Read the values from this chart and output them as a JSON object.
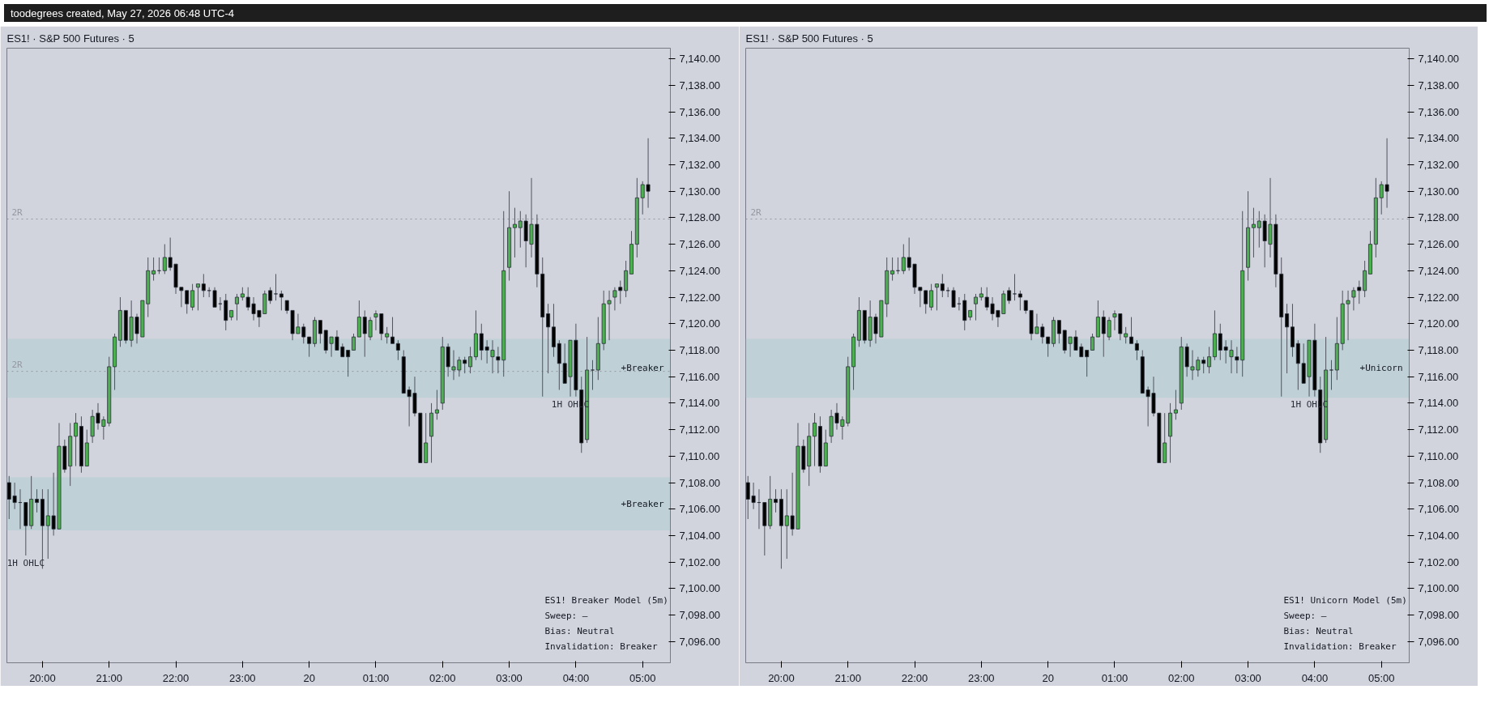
{
  "chart_data": [
    {
      "type": "candlestick",
      "title": "ES1! · S&P 500 Futures · 5",
      "x": [
        "2026-05-19T19:30",
        "2026-05-19T19:35",
        "2026-05-19T19:40",
        "2026-05-19T19:45",
        "2026-05-19T19:50",
        "2026-05-19T19:55",
        "2026-05-19T20:00",
        "2026-05-19T20:05",
        "2026-05-19T20:10",
        "2026-05-19T20:15",
        "2026-05-19T20:20",
        "2026-05-19T20:25",
        "2026-05-19T20:30",
        "2026-05-19T20:35",
        "2026-05-19T20:40",
        "2026-05-19T20:45",
        "2026-05-19T20:50",
        "2026-05-19T20:55",
        "2026-05-19T21:00",
        "2026-05-19T21:05",
        "2026-05-19T21:10",
        "2026-05-19T21:15",
        "2026-05-19T21:20",
        "2026-05-19T21:25",
        "2026-05-19T21:30",
        "2026-05-19T21:35",
        "2026-05-19T21:40",
        "2026-05-19T21:45",
        "2026-05-19T21:50",
        "2026-05-19T21:55",
        "2026-05-19T22:00",
        "2026-05-19T22:05",
        "2026-05-19T22:10",
        "2026-05-19T22:15",
        "2026-05-19T22:20",
        "2026-05-19T22:25",
        "2026-05-19T22:30",
        "2026-05-19T22:35",
        "2026-05-19T22:40",
        "2026-05-19T22:45",
        "2026-05-19T22:50",
        "2026-05-19T22:55",
        "2026-05-19T23:00",
        "2026-05-19T23:05",
        "2026-05-19T23:10",
        "2026-05-19T23:15",
        "2026-05-19T23:20",
        "2026-05-19T23:25",
        "2026-05-19T23:30",
        "2026-05-19T23:35",
        "2026-05-19T23:40",
        "2026-05-19T23:45",
        "2026-05-19T23:50",
        "2026-05-19T23:55",
        "2026-05-20T00:00",
        "2026-05-20T00:05",
        "2026-05-20T00:10",
        "2026-05-20T00:15",
        "2026-05-20T00:20",
        "2026-05-20T00:25",
        "2026-05-20T00:30",
        "2026-05-20T00:35",
        "2026-05-20T00:40",
        "2026-05-20T00:45",
        "2026-05-20T00:50",
        "2026-05-20T00:55",
        "2026-05-20T01:00",
        "2026-05-20T01:05",
        "2026-05-20T01:10",
        "2026-05-20T01:15",
        "2026-05-20T01:20",
        "2026-05-20T01:25",
        "2026-05-20T01:30",
        "2026-05-20T01:35",
        "2026-05-20T01:40",
        "2026-05-20T01:45",
        "2026-05-20T01:50",
        "2026-05-20T01:55",
        "2026-05-20T02:00",
        "2026-05-20T02:05",
        "2026-05-20T02:10",
        "2026-05-20T02:15",
        "2026-05-20T02:20",
        "2026-05-20T02:25",
        "2026-05-20T02:30",
        "2026-05-20T02:35",
        "2026-05-20T02:40",
        "2026-05-20T02:45",
        "2026-05-20T02:50",
        "2026-05-20T02:55",
        "2026-05-20T03:00",
        "2026-05-20T03:05",
        "2026-05-20T03:10",
        "2026-05-20T03:15",
        "2026-05-20T03:20",
        "2026-05-20T03:25",
        "2026-05-20T03:30",
        "2026-05-20T03:35",
        "2026-05-20T03:40",
        "2026-05-20T03:45",
        "2026-05-20T03:50",
        "2026-05-20T03:55",
        "2026-05-20T04:00",
        "2026-05-20T04:05",
        "2026-05-20T04:10",
        "2026-05-20T04:15",
        "2026-05-20T04:20",
        "2026-05-20T04:25",
        "2026-05-20T04:30",
        "2026-05-20T04:35",
        "2026-05-20T04:40",
        "2026-05-20T04:45",
        "2026-05-20T04:50",
        "2026-05-20T04:55",
        "2026-05-20T05:00",
        "2026-05-20T05:05"
      ],
      "ohlc": [
        [
          7108,
          7108.5,
          7105.25,
          7106.75
        ],
        [
          7107,
          7108,
          7106,
          7106.5
        ],
        [
          7106.5,
          7107.5,
          7104.5,
          7106.5
        ],
        [
          7106.5,
          7106.5,
          7102.5,
          7104.75
        ],
        [
          7104.75,
          7108.5,
          7104.5,
          7106.75
        ],
        [
          7106.75,
          7107.5,
          7105.75,
          7106.5
        ],
        [
          7106.75,
          7107.5,
          7101.5,
          7104.75
        ],
        [
          7104.75,
          7107.5,
          7102.25,
          7105.5
        ],
        [
          7105.5,
          7108.75,
          7104,
          7104.5
        ],
        [
          7104.5,
          7112.5,
          7104.5,
          7110.75
        ],
        [
          7110.75,
          7111.25,
          7108.75,
          7109
        ],
        [
          7109.25,
          7112.5,
          7107.75,
          7111.5
        ],
        [
          7111.5,
          7113.25,
          7109.25,
          7112.5
        ],
        [
          7112.25,
          7113,
          7108.75,
          7109.25
        ],
        [
          7109.25,
          7112,
          7109.25,
          7111
        ],
        [
          7111.5,
          7113.5,
          7111,
          7113
        ],
        [
          7113.25,
          7114,
          7112,
          7112.5
        ],
        [
          7112.25,
          7113,
          7111.25,
          7112.75
        ],
        [
          7112.5,
          7117.5,
          7112.25,
          7116.75
        ],
        [
          7116.75,
          7119.25,
          7115,
          7119
        ],
        [
          7118.75,
          7122,
          7118.25,
          7121
        ],
        [
          7121,
          7121,
          7118.5,
          7118.75
        ],
        [
          7118.75,
          7121.75,
          7118.25,
          7120.5
        ],
        [
          7120.5,
          7120.75,
          7118.5,
          7119.25
        ],
        [
          7119,
          7121.75,
          7119,
          7121.75
        ],
        [
          7121.5,
          7125,
          7120.5,
          7124
        ],
        [
          7123.75,
          7125,
          7123.25,
          7124
        ],
        [
          7124,
          7125,
          7123.75,
          7124
        ],
        [
          7124,
          7126,
          7123.75,
          7125
        ],
        [
          7125,
          7126.5,
          7124,
          7124.25
        ],
        [
          7124.5,
          7124.5,
          7122.25,
          7122.75
        ],
        [
          7122.75,
          7122.75,
          7121.25,
          7122.5
        ],
        [
          7122.5,
          7122.5,
          7120.75,
          7121.5
        ],
        [
          7121.25,
          7123,
          7121,
          7122.5
        ],
        [
          7122.75,
          7123,
          7121,
          7123
        ],
        [
          7123,
          7123.75,
          7122,
          7122.5
        ],
        [
          7122.5,
          7122.75,
          7122,
          7122.5
        ],
        [
          7122.5,
          7122.75,
          7121.25,
          7121.25
        ],
        [
          7121.5,
          7122,
          7121,
          7121.5
        ],
        [
          7121.75,
          7122.25,
          7119.5,
          7120.25
        ],
        [
          7120.5,
          7121,
          7120.25,
          7121
        ],
        [
          7121.5,
          7122.25,
          7120.25,
          7122
        ],
        [
          7122,
          7122.75,
          7121.75,
          7122.25
        ],
        [
          7122,
          7122.75,
          7121,
          7121.25
        ],
        [
          7121.5,
          7122,
          7120.25,
          7120.75
        ],
        [
          7121,
          7121,
          7119.75,
          7120.5
        ],
        [
          7120.75,
          7122.5,
          7120.75,
          7122.25
        ],
        [
          7122.5,
          7122.75,
          7121.5,
          7121.75
        ],
        [
          7122.25,
          7123.75,
          7121.75,
          7122.25
        ],
        [
          7122.25,
          7122.5,
          7121,
          7122
        ],
        [
          7121.75,
          7121.75,
          7120.75,
          7121
        ],
        [
          7121,
          7121,
          7118.75,
          7119.25
        ],
        [
          7119.25,
          7120.75,
          7119.25,
          7119.75
        ],
        [
          7119.75,
          7120,
          7118.5,
          7119
        ],
        [
          7119,
          7119,
          7117.5,
          7118.5
        ],
        [
          7118.5,
          7120.5,
          7118.25,
          7120.25
        ],
        [
          7120.25,
          7120.25,
          7118.5,
          7119.25
        ],
        [
          7119.5,
          7119.5,
          7117.75,
          7118
        ],
        [
          7118.5,
          7119,
          7117.5,
          7119
        ],
        [
          7119,
          7119.5,
          7118,
          7118
        ],
        [
          7118.25,
          7118.5,
          7117.5,
          7117.5
        ],
        [
          7118,
          7118,
          7116,
          7117.5
        ],
        [
          7118,
          7119.25,
          7118,
          7119
        ],
        [
          7119,
          7121.75,
          7119,
          7120.5
        ],
        [
          7120.5,
          7121,
          7117.5,
          7119.25
        ],
        [
          7119,
          7120.5,
          7118.75,
          7120.25
        ],
        [
          7120.5,
          7121,
          7119.5,
          7120.75
        ],
        [
          7120.75,
          7120.75,
          7118.75,
          7119.25
        ],
        [
          7119,
          7119.75,
          7118.5,
          7119.25
        ],
        [
          7119,
          7120.5,
          7118.5,
          7118.5
        ],
        [
          7118.5,
          7118.75,
          7117.25,
          7118
        ],
        [
          7117.5,
          7118,
          7114.75,
          7114.75
        ],
        [
          7115,
          7115.25,
          7112.25,
          7114.5
        ],
        [
          7114.75,
          7116,
          7113,
          7113.25
        ],
        [
          7113.25,
          7113.25,
          7109.5,
          7109.5
        ],
        [
          7109.5,
          7113.25,
          7109.5,
          7111
        ],
        [
          7111.5,
          7114,
          7109.5,
          7113.25
        ],
        [
          7113.25,
          7115,
          7112.75,
          7113.5
        ],
        [
          7114,
          7119,
          7113.5,
          7118.25
        ],
        [
          7118.25,
          7118.5,
          7116,
          7116.75
        ],
        [
          7116.5,
          7118,
          7115.75,
          7116.75
        ],
        [
          7116.5,
          7117.5,
          7116,
          7117.25
        ],
        [
          7117.25,
          7117.5,
          7116.25,
          7117
        ],
        [
          7116.75,
          7118.25,
          7116.25,
          7117.5
        ],
        [
          7117.5,
          7121,
          7117.25,
          7119.25
        ],
        [
          7119.25,
          7120,
          7117.25,
          7118
        ],
        [
          7118.25,
          7118.75,
          7117,
          7118
        ],
        [
          7117.5,
          7118.75,
          7116.25,
          7118
        ],
        [
          7117.5,
          7118.25,
          7116.25,
          7117.25
        ],
        [
          7117.25,
          7128.5,
          7116,
          7124
        ],
        [
          7124.25,
          7130,
          7123.25,
          7127.25
        ],
        [
          7127.25,
          7128.75,
          7125,
          7127.5
        ],
        [
          7127.25,
          7128.5,
          7125.75,
          7127.75
        ],
        [
          7127.75,
          7128.25,
          7124.25,
          7126.25
        ],
        [
          7126,
          7131,
          7125,
          7127.5
        ],
        [
          7127.5,
          7128.25,
          7122.75,
          7123.75
        ],
        [
          7123.75,
          7125,
          7114.5,
          7120.5
        ],
        [
          7120.75,
          7121.5,
          7116.25,
          7119.75
        ],
        [
          7119.75,
          7121.5,
          7117.5,
          7118.25
        ],
        [
          7118.5,
          7118.75,
          7115,
          7117
        ],
        [
          7117,
          7118.5,
          7115.5,
          7115.5
        ],
        [
          7116,
          7118.75,
          7114.5,
          7118.75
        ],
        [
          7118.75,
          7120,
          7114.5,
          7115
        ],
        [
          7115,
          7116,
          7110.25,
          7111
        ],
        [
          7111.25,
          7119,
          7111,
          7116.5
        ],
        [
          7116.5,
          7117.25,
          7115,
          7116.5
        ],
        [
          7116.5,
          7120.5,
          7115.75,
          7118.5
        ],
        [
          7118.5,
          7122.5,
          7118,
          7121.5
        ],
        [
          7121.5,
          7122.5,
          7118.75,
          7121.75
        ],
        [
          7122,
          7122.75,
          7121,
          7122.5
        ],
        [
          7122.75,
          7123.25,
          7121.5,
          7122.5
        ],
        [
          7122.5,
          7124.75,
          7122,
          7124
        ],
        [
          7123.75,
          7127,
          7123.75,
          7126
        ],
        [
          7126,
          7131,
          7125,
          7129.5
        ],
        [
          7129.5,
          7130.75,
          7128.25,
          7130.5
        ],
        [
          7130.5,
          7134,
          7128.75,
          7130
        ]
      ],
      "xlim": [
        "2026-05-19T19:28",
        "2026-05-20T05:25"
      ],
      "ylim": [
        7094.4,
        7140.8
      ],
      "xticks": [
        {
          "value": "2026-05-19T20:00",
          "label": "20:00"
        },
        {
          "value": "2026-05-19T21:00",
          "label": "21:00"
        },
        {
          "value": "2026-05-19T22:00",
          "label": "22:00"
        },
        {
          "value": "2026-05-19T23:00",
          "label": "23:00"
        },
        {
          "value": "2026-05-20T00:00",
          "label": "20"
        },
        {
          "value": "2026-05-20T01:00",
          "label": "01:00"
        },
        {
          "value": "2026-05-20T02:00",
          "label": "02:00"
        },
        {
          "value": "2026-05-20T03:00",
          "label": "03:00"
        },
        {
          "value": "2026-05-20T04:00",
          "label": "04:00"
        },
        {
          "value": "2026-05-20T05:00",
          "label": "05:00"
        }
      ],
      "yticks": [
        {
          "value": 7096,
          "label": "7,096.00"
        },
        {
          "value": 7098,
          "label": "7,098.00"
        },
        {
          "value": 7100,
          "label": "7,100.00"
        },
        {
          "value": 7102,
          "label": "7,102.00"
        },
        {
          "value": 7104,
          "label": "7,104.00"
        },
        {
          "value": 7106,
          "label": "7,106.00"
        },
        {
          "value": 7108,
          "label": "7,108.00"
        },
        {
          "value": 7110,
          "label": "7,110.00"
        },
        {
          "value": 7112,
          "label": "7,112.00"
        },
        {
          "value": 7114,
          "label": "7,114.00"
        },
        {
          "value": 7116,
          "label": "7,116.00"
        },
        {
          "value": 7118,
          "label": "7,118.00"
        },
        {
          "value": 7120,
          "label": "7,120.00"
        },
        {
          "value": 7122,
          "label": "7,122.00"
        },
        {
          "value": 7124,
          "label": "7,124.00"
        },
        {
          "value": 7126,
          "label": "7,126.00"
        },
        {
          "value": 7128,
          "label": "7,128.00"
        },
        {
          "value": 7130,
          "label": "7,130.00"
        },
        {
          "value": 7132,
          "label": "7,132.00"
        },
        {
          "value": 7134,
          "label": "7,134.00"
        },
        {
          "value": 7136,
          "label": "7,136.00"
        },
        {
          "value": 7138,
          "label": "7,138.00"
        },
        {
          "value": 7140,
          "label": "7,140.00"
        }
      ],
      "annotations": [
        "toodegrees created, May 27, 2026 06:48 UTC-4",
        {
          "text": "1H OHLC",
          "x": "2026-05-19T19:45",
          "y": 7102.5
        },
        {
          "text": "1H OHLC",
          "x": "2026-05-20T03:55",
          "y": 7114.5
        },
        "ES1! Breaker Model (5m)",
        "Sweep: –",
        "Bias: Neutral",
        "Invalidation: Breaker"
      ],
      "ref_lines": [
        {
          "axis": "y",
          "value": 7116.4,
          "label": "2R",
          "line_style": "dotted",
          "color": "#9598a1"
        },
        {
          "axis": "y",
          "value": 7127.9,
          "label": "2R",
          "line_style": "dotted",
          "color": "#9598a1"
        }
      ],
      "bands": [
        {
          "axis": "y",
          "from": 7104.4,
          "to": 7108.4,
          "label": "+Breaker",
          "color": "#b2ced3"
        },
        {
          "axis": "y",
          "from": 7114.4,
          "to": 7118.85,
          "label": "+Breaker",
          "color": "#b2ced3"
        }
      ]
    },
    {
      "type": "candlestick",
      "title": "ES1! · S&P 500 Futures · 5",
      "x": [
        "2026-05-19T19:30",
        "2026-05-19T19:35",
        "2026-05-19T19:40",
        "2026-05-19T19:45",
        "2026-05-19T19:50",
        "2026-05-19T19:55",
        "2026-05-19T20:00",
        "2026-05-19T20:05",
        "2026-05-19T20:10",
        "2026-05-19T20:15",
        "2026-05-19T20:20",
        "2026-05-19T20:25",
        "2026-05-19T20:30",
        "2026-05-19T20:35",
        "2026-05-19T20:40",
        "2026-05-19T20:45",
        "2026-05-19T20:50",
        "2026-05-19T20:55",
        "2026-05-19T21:00",
        "2026-05-19T21:05",
        "2026-05-19T21:10",
        "2026-05-19T21:15",
        "2026-05-19T21:20",
        "2026-05-19T21:25",
        "2026-05-19T21:30",
        "2026-05-19T21:35",
        "2026-05-19T21:40",
        "2026-05-19T21:45",
        "2026-05-19T21:50",
        "2026-05-19T21:55",
        "2026-05-19T22:00",
        "2026-05-19T22:05",
        "2026-05-19T22:10",
        "2026-05-19T22:15",
        "2026-05-19T22:20",
        "2026-05-19T22:25",
        "2026-05-19T22:30",
        "2026-05-19T22:35",
        "2026-05-19T22:40",
        "2026-05-19T22:45",
        "2026-05-19T22:50",
        "2026-05-19T22:55",
        "2026-05-19T23:00",
        "2026-05-19T23:05",
        "2026-05-19T23:10",
        "2026-05-19T23:15",
        "2026-05-19T23:20",
        "2026-05-19T23:25",
        "2026-05-19T23:30",
        "2026-05-19T23:35",
        "2026-05-19T23:40",
        "2026-05-19T23:45",
        "2026-05-19T23:50",
        "2026-05-19T23:55",
        "2026-05-20T00:00",
        "2026-05-20T00:05",
        "2026-05-20T00:10",
        "2026-05-20T00:15",
        "2026-05-20T00:20",
        "2026-05-20T00:25",
        "2026-05-20T00:30",
        "2026-05-20T00:35",
        "2026-05-20T00:40",
        "2026-05-20T00:45",
        "2026-05-20T00:50",
        "2026-05-20T00:55",
        "2026-05-20T01:00",
        "2026-05-20T01:05",
        "2026-05-20T01:10",
        "2026-05-20T01:15",
        "2026-05-20T01:20",
        "2026-05-20T01:25",
        "2026-05-20T01:30",
        "2026-05-20T01:35",
        "2026-05-20T01:40",
        "2026-05-20T01:45",
        "2026-05-20T01:50",
        "2026-05-20T01:55",
        "2026-05-20T02:00",
        "2026-05-20T02:05",
        "2026-05-20T02:10",
        "2026-05-20T02:15",
        "2026-05-20T02:20",
        "2026-05-20T02:25",
        "2026-05-20T02:30",
        "2026-05-20T02:35",
        "2026-05-20T02:40",
        "2026-05-20T02:45",
        "2026-05-20T02:50",
        "2026-05-20T02:55",
        "2026-05-20T03:00",
        "2026-05-20T03:05",
        "2026-05-20T03:10",
        "2026-05-20T03:15",
        "2026-05-20T03:20",
        "2026-05-20T03:25",
        "2026-05-20T03:30",
        "2026-05-20T03:35",
        "2026-05-20T03:40",
        "2026-05-20T03:45",
        "2026-05-20T03:50",
        "2026-05-20T03:55",
        "2026-05-20T04:00",
        "2026-05-20T04:05",
        "2026-05-20T04:10",
        "2026-05-20T04:15",
        "2026-05-20T04:20",
        "2026-05-20T04:25",
        "2026-05-20T04:30",
        "2026-05-20T04:35",
        "2026-05-20T04:40",
        "2026-05-20T04:45",
        "2026-05-20T04:50",
        "2026-05-20T04:55",
        "2026-05-20T05:00",
        "2026-05-20T05:05"
      ],
      "ohlc": [
        [
          7108,
          7108.5,
          7105.25,
          7106.75
        ],
        [
          7107,
          7108,
          7106,
          7106.5
        ],
        [
          7106.5,
          7107.5,
          7104.5,
          7106.5
        ],
        [
          7106.5,
          7106.5,
          7102.5,
          7104.75
        ],
        [
          7104.75,
          7108.5,
          7104.5,
          7106.75
        ],
        [
          7106.75,
          7107.5,
          7105.75,
          7106.5
        ],
        [
          7106.75,
          7107.5,
          7101.5,
          7104.75
        ],
        [
          7104.75,
          7107.5,
          7102.25,
          7105.5
        ],
        [
          7105.5,
          7108.75,
          7104,
          7104.5
        ],
        [
          7104.5,
          7112.5,
          7104.5,
          7110.75
        ],
        [
          7110.75,
          7111.25,
          7108.75,
          7109
        ],
        [
          7109.25,
          7112.5,
          7107.75,
          7111.5
        ],
        [
          7111.5,
          7113.25,
          7109.25,
          7112.5
        ],
        [
          7112.25,
          7113,
          7108.75,
          7109.25
        ],
        [
          7109.25,
          7112,
          7109.25,
          7111
        ],
        [
          7111.5,
          7113.5,
          7111,
          7113
        ],
        [
          7113.25,
          7114,
          7112,
          7112.5
        ],
        [
          7112.25,
          7113,
          7111.25,
          7112.75
        ],
        [
          7112.5,
          7117.5,
          7112.25,
          7116.75
        ],
        [
          7116.75,
          7119.25,
          7115,
          7119
        ],
        [
          7118.75,
          7122,
          7118.25,
          7121
        ],
        [
          7121,
          7121,
          7118.5,
          7118.75
        ],
        [
          7118.75,
          7121.75,
          7118.25,
          7120.5
        ],
        [
          7120.5,
          7120.75,
          7118.5,
          7119.25
        ],
        [
          7119,
          7121.75,
          7119,
          7121.75
        ],
        [
          7121.5,
          7125,
          7120.5,
          7124
        ],
        [
          7123.75,
          7125,
          7123.25,
          7124
        ],
        [
          7124,
          7125,
          7123.75,
          7124
        ],
        [
          7124,
          7126,
          7123.75,
          7125
        ],
        [
          7125,
          7126.5,
          7124,
          7124.25
        ],
        [
          7124.5,
          7124.5,
          7122.25,
          7122.75
        ],
        [
          7122.75,
          7122.75,
          7121.25,
          7122.5
        ],
        [
          7122.5,
          7122.5,
          7120.75,
          7121.5
        ],
        [
          7121.25,
          7123,
          7121,
          7122.5
        ],
        [
          7122.75,
          7123,
          7121,
          7123
        ],
        [
          7123,
          7123.75,
          7122,
          7122.5
        ],
        [
          7122.5,
          7122.75,
          7122,
          7122.5
        ],
        [
          7122.5,
          7122.75,
          7121.25,
          7121.25
        ],
        [
          7121.5,
          7122,
          7121,
          7121.5
        ],
        [
          7121.75,
          7122.25,
          7119.5,
          7120.25
        ],
        [
          7120.5,
          7121,
          7120.25,
          7121
        ],
        [
          7121.5,
          7122.25,
          7120.25,
          7122
        ],
        [
          7122,
          7122.75,
          7121.75,
          7122.25
        ],
        [
          7122,
          7122.75,
          7121,
          7121.25
        ],
        [
          7121.5,
          7122,
          7120.25,
          7120.75
        ],
        [
          7121,
          7121,
          7119.75,
          7120.5
        ],
        [
          7120.75,
          7122.5,
          7120.75,
          7122.25
        ],
        [
          7122.5,
          7122.75,
          7121.5,
          7121.75
        ],
        [
          7122.25,
          7123.75,
          7121.75,
          7122.25
        ],
        [
          7122.25,
          7122.5,
          7121,
          7122
        ],
        [
          7121.75,
          7121.75,
          7120.75,
          7121
        ],
        [
          7121,
          7121,
          7118.75,
          7119.25
        ],
        [
          7119.25,
          7120.75,
          7119.25,
          7119.75
        ],
        [
          7119.75,
          7120,
          7118.5,
          7119
        ],
        [
          7119,
          7119,
          7117.5,
          7118.5
        ],
        [
          7118.5,
          7120.5,
          7118.25,
          7120.25
        ],
        [
          7120.25,
          7120.25,
          7118.5,
          7119.25
        ],
        [
          7119.5,
          7119.5,
          7117.75,
          7118
        ],
        [
          7118.5,
          7119,
          7117.5,
          7119
        ],
        [
          7119,
          7119.5,
          7118,
          7118
        ],
        [
          7118.25,
          7118.5,
          7117.5,
          7117.5
        ],
        [
          7118,
          7118,
          7116,
          7117.5
        ],
        [
          7118,
          7119.25,
          7118,
          7119
        ],
        [
          7119,
          7121.75,
          7119,
          7120.5
        ],
        [
          7120.5,
          7121,
          7117.5,
          7119.25
        ],
        [
          7119,
          7120.5,
          7118.75,
          7120.25
        ],
        [
          7120.5,
          7121,
          7119.5,
          7120.75
        ],
        [
          7120.75,
          7120.75,
          7118.75,
          7119.25
        ],
        [
          7119,
          7119.75,
          7118.5,
          7119.25
        ],
        [
          7119,
          7120.5,
          7118.5,
          7118.5
        ],
        [
          7118.5,
          7118.75,
          7117.25,
          7118
        ],
        [
          7117.5,
          7118,
          7114.75,
          7114.75
        ],
        [
          7115,
          7115.25,
          7112.25,
          7114.5
        ],
        [
          7114.75,
          7116,
          7113,
          7113.25
        ],
        [
          7113.25,
          7113.25,
          7109.5,
          7109.5
        ],
        [
          7109.5,
          7113.25,
          7109.5,
          7111
        ],
        [
          7111.5,
          7114,
          7109.5,
          7113.25
        ],
        [
          7113.25,
          7115,
          7112.75,
          7113.5
        ],
        [
          7114,
          7119,
          7113.5,
          7118.25
        ],
        [
          7118.25,
          7118.5,
          7116,
          7116.75
        ],
        [
          7116.5,
          7118,
          7115.75,
          7116.75
        ],
        [
          7116.5,
          7117.5,
          7116,
          7117.25
        ],
        [
          7117.25,
          7117.5,
          7116.25,
          7117
        ],
        [
          7116.75,
          7118.25,
          7116.25,
          7117.5
        ],
        [
          7117.5,
          7121,
          7117.25,
          7119.25
        ],
        [
          7119.25,
          7120,
          7117.25,
          7118
        ],
        [
          7118.25,
          7118.75,
          7117,
          7118
        ],
        [
          7117.5,
          7118.75,
          7116.25,
          7118
        ],
        [
          7117.5,
          7118.25,
          7116.25,
          7117.25
        ],
        [
          7117.25,
          7128.5,
          7116,
          7124
        ],
        [
          7124.25,
          7130,
          7123.25,
          7127.25
        ],
        [
          7127.25,
          7128.75,
          7125,
          7127.5
        ],
        [
          7127.25,
          7128.5,
          7125.75,
          7127.75
        ],
        [
          7127.75,
          7128.25,
          7124.25,
          7126.25
        ],
        [
          7126,
          7131,
          7125,
          7127.5
        ],
        [
          7127.5,
          7128.25,
          7122.75,
          7123.75
        ],
        [
          7123.75,
          7125,
          7114.5,
          7120.5
        ],
        [
          7120.75,
          7121.5,
          7116.25,
          7119.75
        ],
        [
          7119.75,
          7121.5,
          7117.5,
          7118.25
        ],
        [
          7118.5,
          7118.75,
          7115,
          7117
        ],
        [
          7117,
          7118.5,
          7115.5,
          7115.5
        ],
        [
          7116,
          7118.75,
          7114.5,
          7118.75
        ],
        [
          7118.75,
          7120,
          7114.5,
          7115
        ],
        [
          7115,
          7116,
          7110.25,
          7111
        ],
        [
          7111.25,
          7119,
          7111,
          7116.5
        ],
        [
          7116.5,
          7117.25,
          7115,
          7116.5
        ],
        [
          7116.5,
          7120.5,
          7115.75,
          7118.5
        ],
        [
          7118.5,
          7122.5,
          7118,
          7121.5
        ],
        [
          7121.5,
          7122.5,
          7118.75,
          7121.75
        ],
        [
          7122,
          7122.75,
          7121,
          7122.5
        ],
        [
          7122.75,
          7123.25,
          7121.5,
          7122.5
        ],
        [
          7122.5,
          7124.75,
          7122,
          7124
        ],
        [
          7123.75,
          7127,
          7123.75,
          7126
        ],
        [
          7126,
          7131,
          7125,
          7129.5
        ],
        [
          7129.5,
          7130.75,
          7128.25,
          7130.5
        ],
        [
          7130.5,
          7134,
          7128.75,
          7130
        ]
      ],
      "xlim": [
        "2026-05-19T19:28",
        "2026-05-20T05:25"
      ],
      "ylim": [
        7094.4,
        7140.8
      ],
      "xticks": [
        {
          "value": "2026-05-19T20:00",
          "label": "20:00"
        },
        {
          "value": "2026-05-19T21:00",
          "label": "21:00"
        },
        {
          "value": "2026-05-19T22:00",
          "label": "22:00"
        },
        {
          "value": "2026-05-19T23:00",
          "label": "23:00"
        },
        {
          "value": "2026-05-20T00:00",
          "label": "20"
        },
        {
          "value": "2026-05-20T01:00",
          "label": "01:00"
        },
        {
          "value": "2026-05-20T02:00",
          "label": "02:00"
        },
        {
          "value": "2026-05-20T03:00",
          "label": "03:00"
        },
        {
          "value": "2026-05-20T04:00",
          "label": "04:00"
        },
        {
          "value": "2026-05-20T05:00",
          "label": "05:00"
        }
      ],
      "yticks": [
        {
          "value": 7096,
          "label": "7,096.00"
        },
        {
          "value": 7098,
          "label": "7,098.00"
        },
        {
          "value": 7100,
          "label": "7,100.00"
        },
        {
          "value": 7102,
          "label": "7,102.00"
        },
        {
          "value": 7104,
          "label": "7,104.00"
        },
        {
          "value": 7106,
          "label": "7,106.00"
        },
        {
          "value": 7108,
          "label": "7,108.00"
        },
        {
          "value": 7110,
          "label": "7,110.00"
        },
        {
          "value": 7112,
          "label": "7,112.00"
        },
        {
          "value": 7114,
          "label": "7,114.00"
        },
        {
          "value": 7116,
          "label": "7,116.00"
        },
        {
          "value": 7118,
          "label": "7,118.00"
        },
        {
          "value": 7120,
          "label": "7,120.00"
        },
        {
          "value": 7122,
          "label": "7,122.00"
        },
        {
          "value": 7124,
          "label": "7,124.00"
        },
        {
          "value": 7126,
          "label": "7,126.00"
        },
        {
          "value": 7128,
          "label": "7,128.00"
        },
        {
          "value": 7130,
          "label": "7,130.00"
        },
        {
          "value": 7132,
          "label": "7,132.00"
        },
        {
          "value": 7134,
          "label": "7,134.00"
        },
        {
          "value": 7136,
          "label": "7,136.00"
        },
        {
          "value": 7138,
          "label": "7,138.00"
        },
        {
          "value": 7140,
          "label": "7,140.00"
        }
      ],
      "annotations": [
        {
          "text": "1H OHLC",
          "x": "2026-05-20T03:55",
          "y": 7114.5
        },
        "ES1! Unicorn Model (5m)",
        "Sweep: –",
        "Bias: Neutral",
        "Invalidation: Breaker"
      ],
      "ref_lines": [
        {
          "axis": "y",
          "value": 7127.9,
          "label": "2R",
          "line_style": "dotted",
          "color": "#9598a1"
        }
      ],
      "bands": [
        {
          "axis": "y",
          "from": 7114.4,
          "to": 7118.85,
          "label": "+Unicorn",
          "color": "#b2ced3"
        }
      ]
    }
  ]
}
